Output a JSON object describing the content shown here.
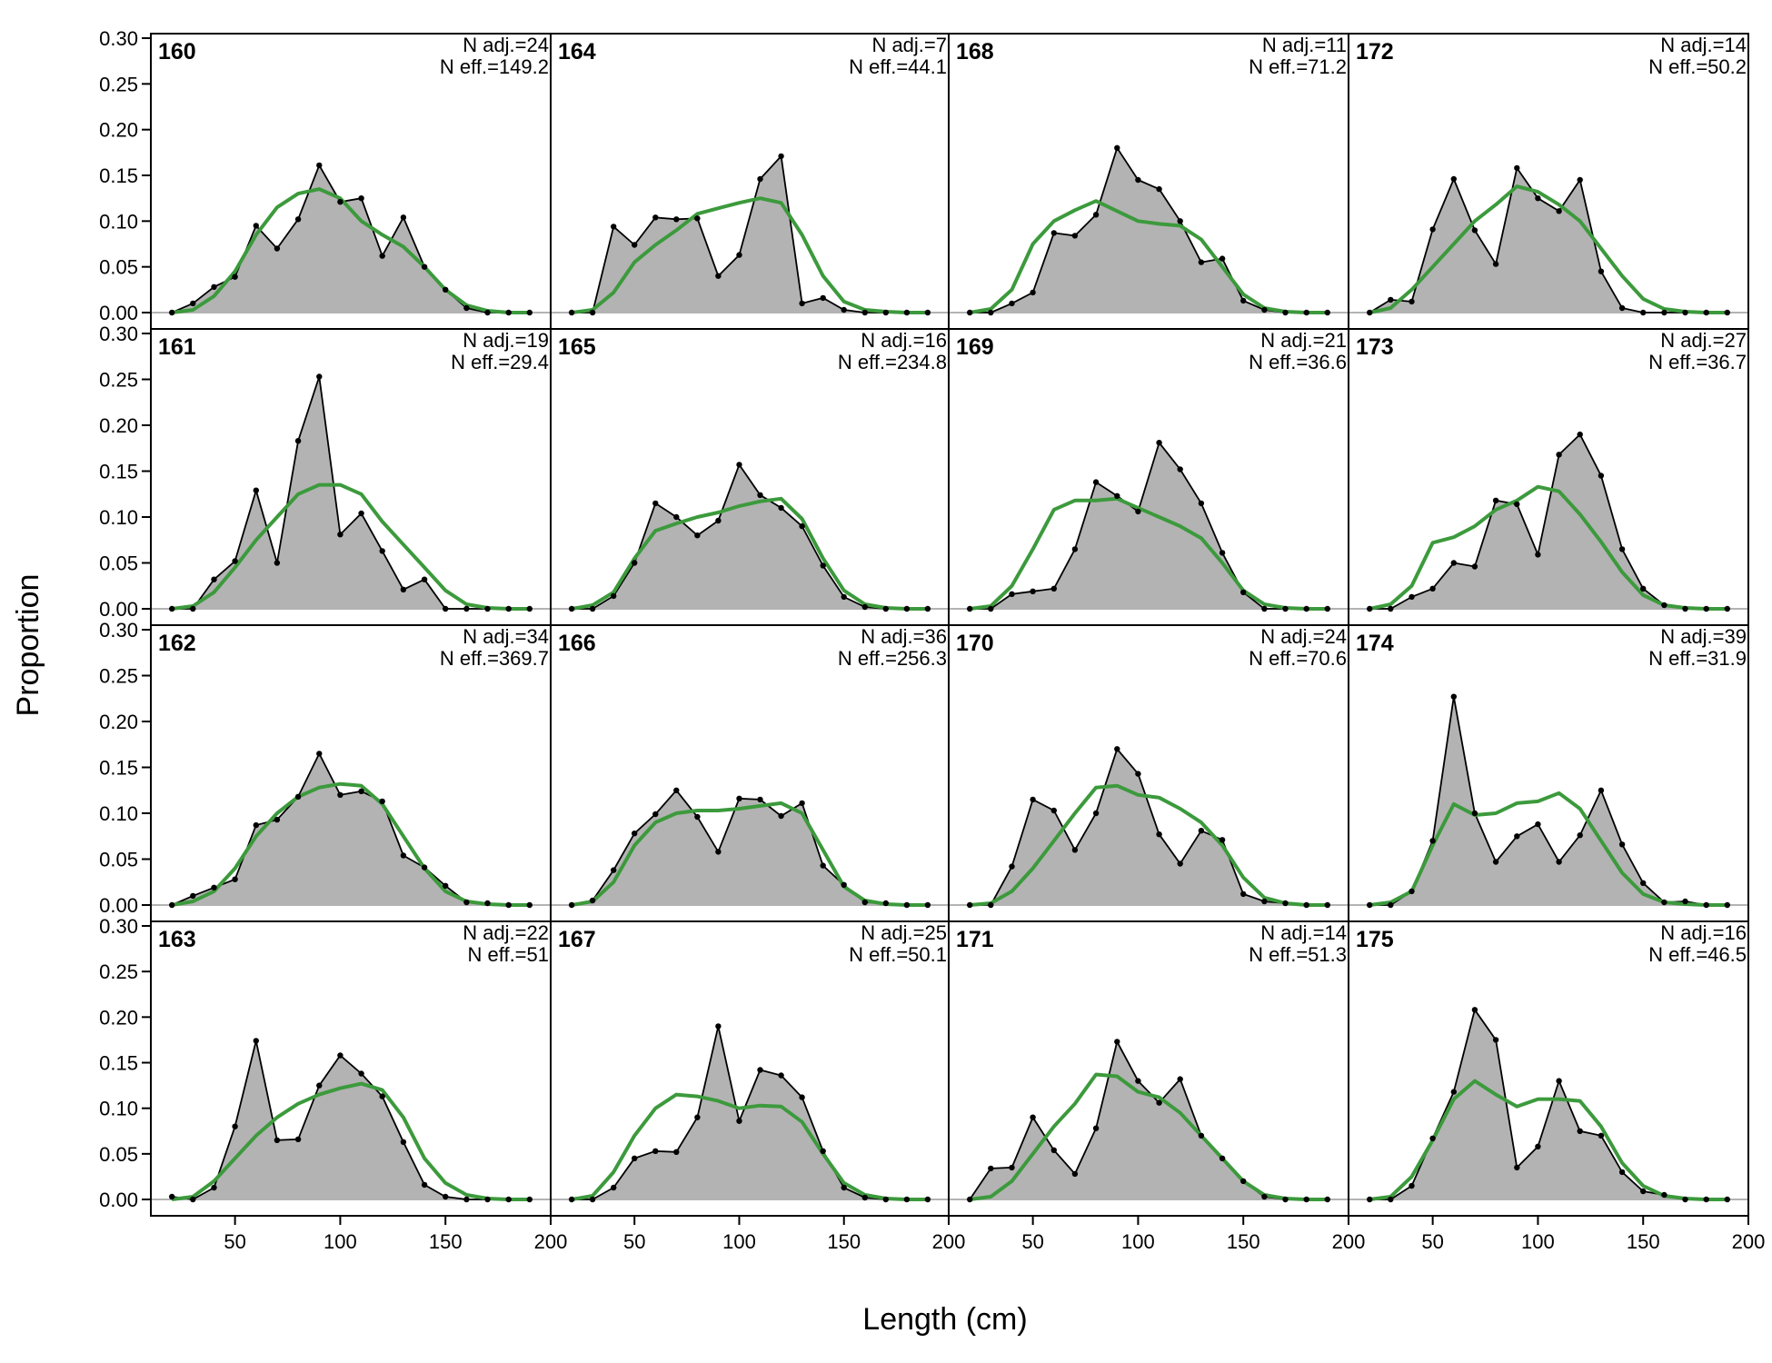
{
  "chart_data": {
    "type": "area",
    "xlabel": "Length (cm)",
    "ylabel": "Proportion",
    "xlim": [
      10,
      200
    ],
    "ylim": [
      0,
      0.3
    ],
    "x_ticks": [
      50,
      100,
      150,
      200
    ],
    "x_tick_labels": [
      "50",
      "100",
      "150",
      "200"
    ],
    "y_ticks": [
      0,
      0.05,
      0.1,
      0.15,
      0.2,
      0.25,
      0.3
    ],
    "y_tick_labels": [
      "0.00",
      "0.05",
      "0.10",
      "0.15",
      "0.20",
      "0.25",
      "0.30"
    ],
    "colors": {
      "observed_fill": "#b3b3b3",
      "observed_line": "#000000",
      "expected_line": "#3c9a3c",
      "zero_line": "#b3b3b3"
    },
    "x": [
      20,
      30,
      40,
      50,
      60,
      70,
      80,
      90,
      100,
      110,
      120,
      130,
      140,
      150,
      160,
      170,
      180,
      190
    ],
    "panels": [
      {
        "title": "160",
        "n_adj": "N adj.=24",
        "n_eff": "N eff.=149.2",
        "observed": [
          0,
          0.01,
          0.028,
          0.039,
          0.095,
          0.07,
          0.102,
          0.161,
          0.121,
          0.125,
          0.062,
          0.104,
          0.05,
          0.025,
          0.005,
          0,
          0,
          0
        ],
        "expected": [
          0,
          0.003,
          0.018,
          0.045,
          0.085,
          0.115,
          0.13,
          0.135,
          0.125,
          0.1,
          0.085,
          0.072,
          0.05,
          0.025,
          0.008,
          0.002,
          0,
          0
        ]
      },
      {
        "title": "161",
        "n_adj": "N adj.=19",
        "n_eff": "N eff.=29.4",
        "observed": [
          0,
          0,
          0.032,
          0.052,
          0.129,
          0.05,
          0.183,
          0.253,
          0.081,
          0.104,
          0.063,
          0.021,
          0.032,
          0,
          0,
          0,
          0,
          0
        ],
        "expected": [
          0,
          0.003,
          0.018,
          0.045,
          0.075,
          0.1,
          0.125,
          0.135,
          0.135,
          0.125,
          0.095,
          0.07,
          0.045,
          0.02,
          0.005,
          0.001,
          0,
          0
        ]
      },
      {
        "title": "162",
        "n_adj": "N adj.=34",
        "n_eff": "N eff.=369.7",
        "observed": [
          0,
          0.01,
          0.019,
          0.028,
          0.087,
          0.093,
          0.118,
          0.165,
          0.12,
          0.124,
          0.113,
          0.054,
          0.041,
          0.021,
          0.003,
          0.002,
          0,
          0
        ],
        "expected": [
          0,
          0.004,
          0.015,
          0.04,
          0.075,
          0.1,
          0.118,
          0.128,
          0.132,
          0.13,
          0.11,
          0.075,
          0.04,
          0.015,
          0.004,
          0.001,
          0,
          0
        ]
      },
      {
        "title": "163",
        "n_adj": "N adj.=22",
        "n_eff": "N eff.=51",
        "observed": [
          0.003,
          0,
          0.013,
          0.08,
          0.174,
          0.065,
          0.066,
          0.125,
          0.158,
          0.138,
          0.113,
          0.063,
          0.016,
          0.003,
          0,
          0,
          0,
          0
        ],
        "expected": [
          0,
          0.003,
          0.02,
          0.045,
          0.07,
          0.09,
          0.105,
          0.115,
          0.122,
          0.127,
          0.12,
          0.09,
          0.045,
          0.018,
          0.005,
          0.001,
          0,
          0
        ]
      },
      {
        "title": "164",
        "n_adj": "N adj.=7",
        "n_eff": "N eff.=44.1",
        "observed": [
          0,
          0,
          0.094,
          0.074,
          0.104,
          0.102,
          0.103,
          0.04,
          0.063,
          0.146,
          0.171,
          0.01,
          0.016,
          0.003,
          0,
          0,
          0,
          0
        ],
        "expected": [
          0,
          0.003,
          0.022,
          0.055,
          0.074,
          0.09,
          0.108,
          0.114,
          0.12,
          0.125,
          0.12,
          0.085,
          0.04,
          0.012,
          0.003,
          0.001,
          0,
          0
        ]
      },
      {
        "title": "165",
        "n_adj": "N adj.=16",
        "n_eff": "N eff.=234.8",
        "observed": [
          0,
          0,
          0.014,
          0.05,
          0.115,
          0.1,
          0.08,
          0.096,
          0.157,
          0.124,
          0.11,
          0.09,
          0.047,
          0.013,
          0.002,
          0,
          0,
          0
        ],
        "expected": [
          0,
          0.004,
          0.018,
          0.055,
          0.085,
          0.093,
          0.1,
          0.105,
          0.112,
          0.117,
          0.12,
          0.098,
          0.055,
          0.02,
          0.005,
          0.001,
          0,
          0
        ]
      },
      {
        "title": "166",
        "n_adj": "N adj.=36",
        "n_eff": "N eff.=256.3",
        "observed": [
          0,
          0.005,
          0.038,
          0.078,
          0.099,
          0.125,
          0.096,
          0.058,
          0.116,
          0.115,
          0.097,
          0.111,
          0.043,
          0.022,
          0.003,
          0.002,
          0,
          0
        ],
        "expected": [
          0,
          0.004,
          0.025,
          0.065,
          0.09,
          0.1,
          0.103,
          0.103,
          0.105,
          0.108,
          0.111,
          0.1,
          0.06,
          0.02,
          0.005,
          0.001,
          0,
          0
        ]
      },
      {
        "title": "167",
        "n_adj": "N adj.=25",
        "n_eff": "N eff.=50.1",
        "observed": [
          0,
          0,
          0.013,
          0.045,
          0.053,
          0.052,
          0.09,
          0.19,
          0.086,
          0.142,
          0.136,
          0.112,
          0.053,
          0.013,
          0.002,
          0,
          0,
          0
        ],
        "expected": [
          0,
          0.004,
          0.03,
          0.07,
          0.1,
          0.115,
          0.113,
          0.108,
          0.1,
          0.103,
          0.102,
          0.085,
          0.05,
          0.018,
          0.005,
          0.001,
          0,
          0
        ]
      },
      {
        "title": "168",
        "n_adj": "N adj.=11",
        "n_eff": "N eff.=71.2",
        "observed": [
          0,
          0,
          0.01,
          0.022,
          0.087,
          0.084,
          0.107,
          0.18,
          0.145,
          0.135,
          0.1,
          0.055,
          0.059,
          0.013,
          0.003,
          0,
          0,
          0
        ],
        "expected": [
          0,
          0.004,
          0.025,
          0.075,
          0.1,
          0.112,
          0.122,
          0.111,
          0.1,
          0.097,
          0.095,
          0.08,
          0.05,
          0.02,
          0.005,
          0.001,
          0,
          0
        ]
      },
      {
        "title": "169",
        "n_adj": "N adj.=21",
        "n_eff": "N eff.=36.6",
        "observed": [
          0,
          0,
          0.016,
          0.019,
          0.022,
          0.065,
          0.138,
          0.123,
          0.106,
          0.181,
          0.152,
          0.115,
          0.061,
          0.018,
          0,
          0,
          0,
          0
        ],
        "expected": [
          0,
          0.003,
          0.025,
          0.065,
          0.108,
          0.118,
          0.118,
          0.12,
          0.11,
          0.1,
          0.09,
          0.077,
          0.05,
          0.02,
          0.005,
          0.001,
          0,
          0
        ]
      },
      {
        "title": "170",
        "n_adj": "N adj.=24",
        "n_eff": "N eff.=70.6",
        "observed": [
          0,
          0,
          0.042,
          0.115,
          0.103,
          0.06,
          0.1,
          0.17,
          0.143,
          0.077,
          0.045,
          0.081,
          0.071,
          0.012,
          0.004,
          0.002,
          0,
          0
        ],
        "expected": [
          0,
          0.002,
          0.015,
          0.04,
          0.07,
          0.1,
          0.128,
          0.13,
          0.12,
          0.117,
          0.105,
          0.09,
          0.065,
          0.03,
          0.008,
          0.002,
          0,
          0
        ]
      },
      {
        "title": "171",
        "n_adj": "N adj.=14",
        "n_eff": "N eff.=51.3",
        "observed": [
          0,
          0.034,
          0.035,
          0.09,
          0.054,
          0.028,
          0.078,
          0.173,
          0.13,
          0.106,
          0.132,
          0.07,
          0.045,
          0.02,
          0.003,
          0,
          0,
          0
        ],
        "expected": [
          0,
          0.003,
          0.02,
          0.05,
          0.08,
          0.105,
          0.137,
          0.135,
          0.118,
          0.112,
          0.095,
          0.07,
          0.045,
          0.02,
          0.005,
          0.001,
          0,
          0
        ]
      },
      {
        "title": "172",
        "n_adj": "N adj.=14",
        "n_eff": "N eff.=50.2",
        "observed": [
          0,
          0.014,
          0.012,
          0.091,
          0.146,
          0.09,
          0.053,
          0.158,
          0.125,
          0.111,
          0.145,
          0.045,
          0.005,
          0,
          0,
          0,
          0,
          0
        ],
        "expected": [
          0,
          0.005,
          0.025,
          0.05,
          0.075,
          0.1,
          0.118,
          0.138,
          0.132,
          0.118,
          0.1,
          0.07,
          0.04,
          0.015,
          0.004,
          0.001,
          0,
          0
        ]
      },
      {
        "title": "173",
        "n_adj": "N adj.=27",
        "n_eff": "N eff.=36.7",
        "observed": [
          0,
          0,
          0.013,
          0.022,
          0.05,
          0.046,
          0.118,
          0.114,
          0.059,
          0.168,
          0.19,
          0.145,
          0.065,
          0.022,
          0.004,
          0,
          0,
          0
        ],
        "expected": [
          0,
          0.005,
          0.025,
          0.072,
          0.078,
          0.09,
          0.108,
          0.118,
          0.133,
          0.128,
          0.103,
          0.073,
          0.04,
          0.015,
          0.004,
          0.001,
          0,
          0
        ]
      },
      {
        "title": "174",
        "n_adj": "N adj.=39",
        "n_eff": "N eff.=31.9",
        "observed": [
          0,
          0,
          0.015,
          0.07,
          0.227,
          0.1,
          0.047,
          0.075,
          0.088,
          0.047,
          0.076,
          0.125,
          0.066,
          0.024,
          0.003,
          0.004,
          0,
          0
        ],
        "expected": [
          0,
          0.003,
          0.015,
          0.065,
          0.11,
          0.098,
          0.1,
          0.111,
          0.113,
          0.122,
          0.105,
          0.07,
          0.035,
          0.012,
          0.003,
          0.001,
          0,
          0
        ]
      },
      {
        "title": "175",
        "n_adj": "N adj.=16",
        "n_eff": "N eff.=46.5",
        "observed": [
          0,
          0,
          0.015,
          0.067,
          0.118,
          0.208,
          0.175,
          0.035,
          0.058,
          0.13,
          0.075,
          0.07,
          0.03,
          0.009,
          0.005,
          0,
          0,
          0
        ],
        "expected": [
          0,
          0.003,
          0.025,
          0.065,
          0.11,
          0.13,
          0.115,
          0.102,
          0.11,
          0.11,
          0.108,
          0.08,
          0.04,
          0.015,
          0.004,
          0.001,
          0,
          0
        ]
      }
    ]
  }
}
